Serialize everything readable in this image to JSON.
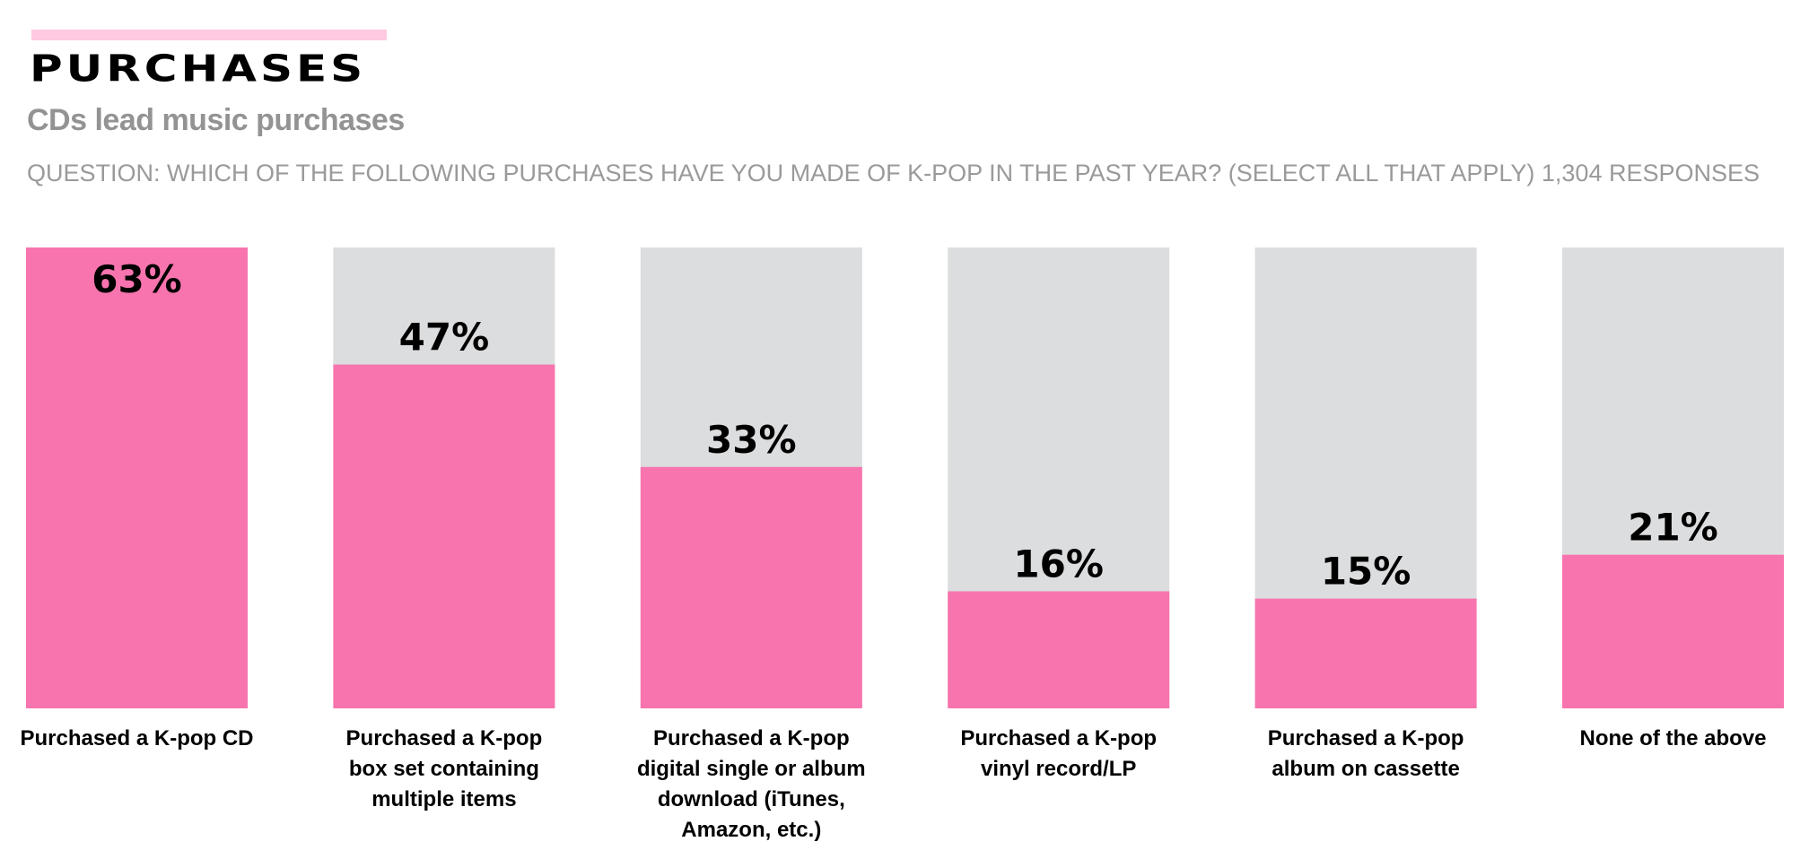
{
  "header": {
    "title": "PURCHASES",
    "subtitle": "CDs lead music purchases",
    "question": "QUESTION: WHICH OF THE FOLLOWING PURCHASES HAVE YOU MADE OF K-POP IN THE PAST YEAR? (SELECT ALL THAT APPLY) 1,304 RESPONSES"
  },
  "colors": {
    "accent": "#ffc9e2",
    "bar_fill": "#f874ae",
    "bar_track": "#dcdddf"
  },
  "chart_data": {
    "type": "bar",
    "title": "PURCHASES",
    "subtitle": "CDs lead music purchases",
    "xlabel": "",
    "ylabel": "",
    "ylim": [
      0,
      63
    ],
    "grid": false,
    "categories": [
      "Purchased a K-pop CD",
      "Purchased a K-pop box set containing multiple items",
      "Purchased a K-pop digital single or album download (iTunes, Amazon, etc.)",
      "Purchased a K-pop vinyl record/LP",
      "Purchased a K-pop album on cassette",
      "None of the above"
    ],
    "values": [
      63,
      47,
      33,
      16,
      15,
      21
    ],
    "data_labels": [
      "63%",
      "47%",
      "33%",
      "16%",
      "15%",
      "21%"
    ]
  }
}
